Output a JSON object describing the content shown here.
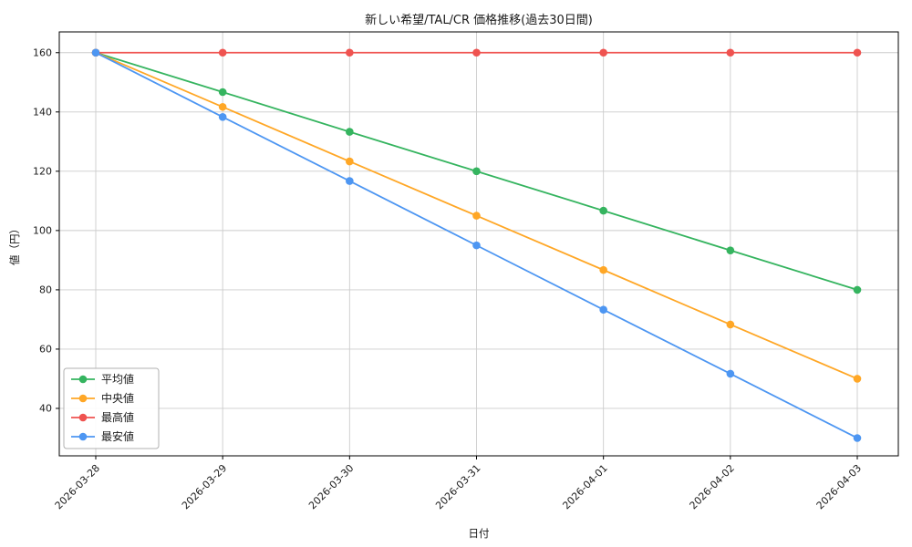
{
  "chart_data": {
    "type": "line",
    "title": "新しい希望/TAL/CR 価格推移(過去30日間)",
    "xlabel": "日付",
    "ylabel": "値（円）",
    "categories": [
      "2026-03-28",
      "2026-03-29",
      "2026-03-30",
      "2026-03-31",
      "2026-04-01",
      "2026-04-02",
      "2026-04-03"
    ],
    "yticks": [
      40,
      60,
      80,
      100,
      120,
      140,
      160
    ],
    "ylim": [
      24,
      167
    ],
    "grid": true,
    "legend_position": "lower-left",
    "series": [
      {
        "key": "average",
        "name": "平均値",
        "color": "#35b45f",
        "values": [
          160,
          146.7,
          133.3,
          120,
          106.7,
          93.3,
          80
        ]
      },
      {
        "key": "median",
        "name": "中央値",
        "color": "#ffa726",
        "values": [
          160,
          141.7,
          123.3,
          105,
          86.7,
          68.3,
          50
        ]
      },
      {
        "key": "max",
        "name": "最高値",
        "color": "#ef5350",
        "values": [
          160,
          160,
          160,
          160,
          160,
          160,
          160
        ]
      },
      {
        "key": "min",
        "name": "最安値",
        "color": "#4d96f2",
        "values": [
          160,
          138.3,
          116.7,
          95,
          73.3,
          51.7,
          30
        ]
      }
    ],
    "colors": {
      "grid": "#cccccc",
      "spine": "#000000",
      "legend_border": "#b0b0b0"
    }
  }
}
